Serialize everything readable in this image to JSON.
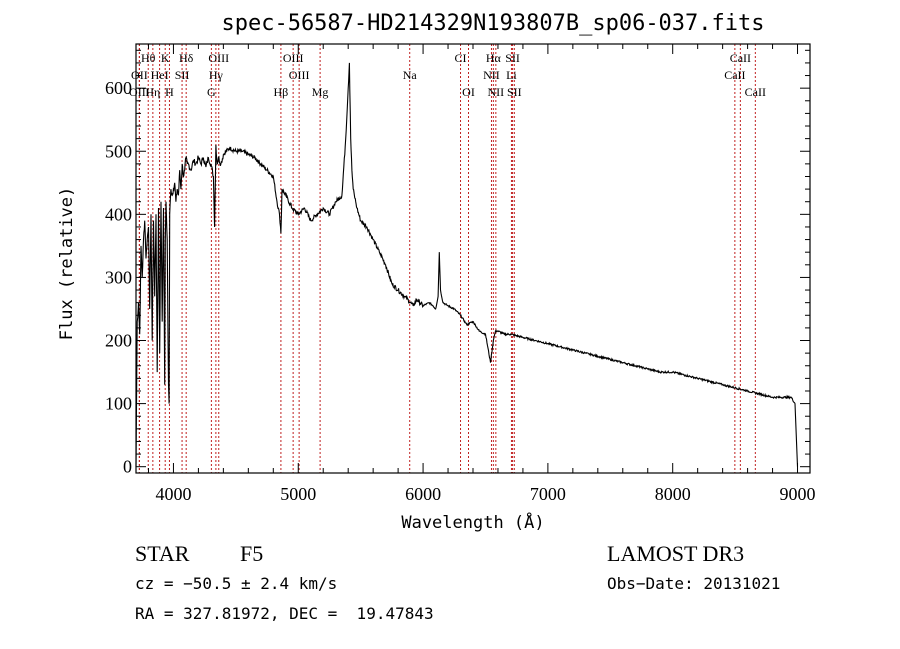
{
  "chart_data": {
    "type": "line",
    "title": "spec-56587-HD214329N193807B_sp06-037.fits",
    "xlabel": "Wavelength (Å)",
    "ylabel": "Flux (relative)",
    "xlim": [
      3700,
      9100
    ],
    "ylim": [
      -10,
      670
    ],
    "xticks": [
      4000,
      5000,
      6000,
      7000,
      8000,
      9000
    ],
    "xtick_labels": [
      "4000",
      "5000",
      "6000",
      "7000",
      "8000",
      "9000"
    ],
    "yticks": [
      0,
      100,
      200,
      300,
      400,
      500,
      600
    ],
    "ytick_labels": [
      "0",
      "100",
      "200",
      "300",
      "400",
      "500",
      "600"
    ],
    "series": [
      {
        "name": "flux",
        "x": [
          3700,
          3710,
          3720,
          3730,
          3740,
          3750,
          3760,
          3770,
          3780,
          3790,
          3800,
          3810,
          3820,
          3830,
          3840,
          3850,
          3860,
          3870,
          3880,
          3890,
          3900,
          3910,
          3920,
          3930,
          3935,
          3940,
          3950,
          3960,
          3965,
          3970,
          3980,
          3990,
          4000,
          4010,
          4020,
          4030,
          4040,
          4050,
          4060,
          4070,
          4080,
          4090,
          4100,
          4110,
          4120,
          4140,
          4160,
          4180,
          4200,
          4220,
          4240,
          4260,
          4280,
          4300,
          4320,
          4330,
          4340,
          4350,
          4360,
          4380,
          4400,
          4450,
          4500,
          4550,
          4600,
          4650,
          4700,
          4750,
          4800,
          4830,
          4850,
          4861,
          4870,
          4900,
          4950,
          5000,
          5050,
          5100,
          5150,
          5200,
          5250,
          5300,
          5350,
          5380,
          5400,
          5410,
          5420,
          5430,
          5440,
          5450,
          5460,
          5470,
          5500,
          5550,
          5600,
          5650,
          5700,
          5750,
          5800,
          5850,
          5900,
          5920,
          5950,
          6000,
          6050,
          6080,
          6100,
          6120,
          6130,
          6140,
          6160,
          6200,
          6250,
          6300,
          6350,
          6400,
          6450,
          6500,
          6540,
          6563,
          6580,
          6600,
          6650,
          6700,
          6800,
          6900,
          7000,
          7100,
          7200,
          7300,
          7400,
          7500,
          7600,
          7700,
          7800,
          7900,
          8000,
          8100,
          8200,
          8300,
          8400,
          8500,
          8600,
          8700,
          8800,
          8900,
          8950,
          8980,
          9000
        ],
        "y": [
          0,
          230,
          260,
          210,
          350,
          300,
          360,
          390,
          330,
          360,
          380,
          250,
          400,
          200,
          390,
          270,
          400,
          150,
          410,
          180,
          420,
          230,
          410,
          130,
          360,
          420,
          360,
          130,
          100,
          400,
          440,
          430,
          440,
          450,
          420,
          440,
          430,
          470,
          440,
          480,
          460,
          470,
          490,
          480,
          480,
          470,
          485,
          480,
          490,
          480,
          490,
          475,
          490,
          480,
          460,
          380,
          510,
          480,
          490,
          480,
          495,
          505,
          500,
          500,
          495,
          490,
          480,
          470,
          460,
          420,
          400,
          370,
          440,
          430,
          410,
          400,
          410,
          390,
          400,
          410,
          400,
          420,
          430,
          520,
          600,
          640,
          520,
          470,
          440,
          430,
          420,
          410,
          390,
          380,
          360,
          340,
          320,
          290,
          280,
          270,
          260,
          255,
          265,
          255,
          260,
          255,
          250,
          270,
          340,
          280,
          260,
          255,
          250,
          240,
          225,
          230,
          215,
          210,
          165,
          200,
          215,
          215,
          210,
          210,
          205,
          200,
          195,
          190,
          185,
          180,
          175,
          170,
          165,
          160,
          155,
          150,
          150,
          145,
          140,
          135,
          130,
          125,
          120,
          115,
          110,
          110,
          110,
          100,
          0
        ],
        "color": "#000000"
      }
    ],
    "spectral_lines": [
      {
        "label": "Hθ",
        "x": 3798,
        "row": 0
      },
      {
        "label": "K",
        "x": 3934,
        "row": 0
      },
      {
        "label": "Hδ",
        "x": 4102,
        "row": 0
      },
      {
        "label": "OIII",
        "x": 4363,
        "row": 0
      },
      {
        "label": "OIII",
        "x": 4959,
        "row": 0
      },
      {
        "label": "CI",
        "x": 6300,
        "row": 0
      },
      {
        "label": "Hα",
        "x": 6563,
        "row": 0
      },
      {
        "label": "SII",
        "x": 6717,
        "row": 0
      },
      {
        "label": "CaII",
        "x": 8542,
        "row": 0
      },
      {
        "label": "OII",
        "x": 3727,
        "row": 1
      },
      {
        "label": "HeI",
        "x": 3889,
        "row": 1
      },
      {
        "label": "SII",
        "x": 4069,
        "row": 1
      },
      {
        "label": "Hγ",
        "x": 4340,
        "row": 1
      },
      {
        "label": "OIII",
        "x": 5007,
        "row": 1
      },
      {
        "label": "Na",
        "x": 5893,
        "row": 1
      },
      {
        "label": "NII",
        "x": 6548,
        "row": 1
      },
      {
        "label": "Li",
        "x": 6708,
        "row": 1
      },
      {
        "label": "CaII",
        "x": 8498,
        "row": 1
      },
      {
        "label": "OIII",
        "x": 3727,
        "row": 2
      },
      {
        "label": "Hη",
        "x": 3835,
        "row": 2
      },
      {
        "label": "H",
        "x": 3968,
        "row": 2
      },
      {
        "label": "G",
        "x": 4304,
        "row": 2
      },
      {
        "label": "Hβ",
        "x": 4861,
        "row": 2
      },
      {
        "label": "Mg",
        "x": 5175,
        "row": 2
      },
      {
        "label": "OI",
        "x": 6364,
        "row": 2
      },
      {
        "label": "NII",
        "x": 6583,
        "row": 2
      },
      {
        "label": "SII",
        "x": 6731,
        "row": 2
      },
      {
        "label": "CaII",
        "x": 8662,
        "row": 2
      }
    ],
    "line_color": "#c02020",
    "grid": false
  },
  "info": {
    "class_label": "STAR",
    "subclass": "F5",
    "cz": "cz = −50.5 ± 2.4 km/s",
    "coords": "RA = 327.81972, DEC =  19.47843",
    "survey": "LAMOST DR3",
    "obs_date": "Obs−Date: 20131021"
  }
}
